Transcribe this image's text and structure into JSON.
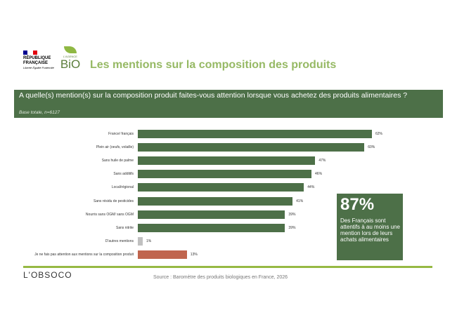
{
  "header": {
    "title": "Les mentions sur la composition des produits",
    "logo_rf": {
      "line1": "RÉPUBLIQUE",
      "line2": "FRANÇAISE",
      "motto": "Liberté Égalité Fraternité"
    },
    "logo_bio": {
      "small": "L'AGENCE",
      "name": "BiO"
    }
  },
  "question": {
    "text": "A quelle(s) mention(s) sur la composition produit faites-vous attention lorsque vous achetez des produits alimentaires ?",
    "base": "Base totale, n=6127"
  },
  "chart_data": {
    "type": "bar",
    "orientation": "horizontal",
    "categories": [
      "France/ français",
      "Plein air (oeufs, volaille)",
      "Sans huile de palme",
      "Sans additifs",
      "Local/régional",
      "Sans résidu de pesticides",
      "Nourris sans OGM/ sans OGM",
      "Sans nitrite",
      "D'autres mentions",
      "Je ne fais pas attention aux mentions sur la composition produit"
    ],
    "values": [
      62,
      60,
      47,
      46,
      44,
      41,
      39,
      39,
      1,
      13
    ],
    "labels": [
      "62%",
      "60%",
      "47%",
      "46%",
      "44%",
      "41%",
      "39%",
      "39%",
      "1%",
      "13%"
    ],
    "colors": [
      "#4d7048",
      "#4d7048",
      "#4d7048",
      "#4d7048",
      "#4d7048",
      "#4d7048",
      "#4d7048",
      "#4d7048",
      "#c0c0c0",
      "#c0654e"
    ],
    "unit": "%",
    "grid": false
  },
  "callout": {
    "value": "87%",
    "text": "Des Français sont attentifs à au moins une mention lors de leurs achats alimentaires"
  },
  "footer": {
    "logo": "L'OBSOCO",
    "source": "Source : Baromètre des produits biologiques en France, 2026"
  }
}
